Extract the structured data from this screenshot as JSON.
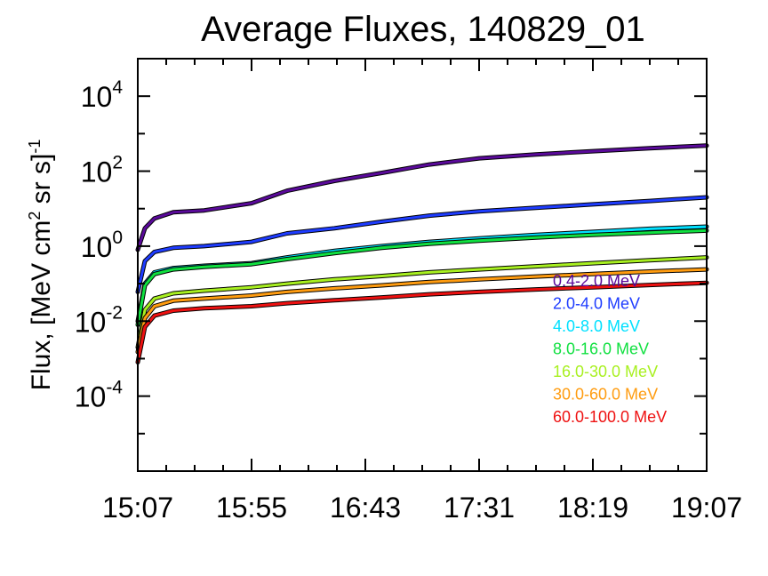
{
  "chart_data": {
    "type": "line",
    "title": "Average Fluxes, 140829_01",
    "ylabel": {
      "base": "Flux, [MeV cm",
      "sup1": "2",
      "mid": " sr s]",
      "sup2": "-1"
    },
    "xlabel": "",
    "x_ticks": [
      "15:07",
      "15:55",
      "16:43",
      "17:31",
      "18:19",
      "19:07"
    ],
    "xlim": [
      "15:07",
      "19:07"
    ],
    "y_scale": "log",
    "ylim": [
      1e-06,
      100000.0
    ],
    "y_ticks": [
      {
        "base": "10",
        "exp": "4",
        "value": 10000
      },
      {
        "base": "10",
        "exp": "2",
        "value": 100
      },
      {
        "base": "10",
        "exp": "0",
        "value": 1
      },
      {
        "base": "10",
        "exp": "-2",
        "value": 0.01
      },
      {
        "base": "10",
        "exp": "-4",
        "value": 0.0001
      }
    ],
    "grid": false,
    "legend_position": "right",
    "x": [
      "15:07",
      "15:10",
      "15:14",
      "15:22",
      "15:35",
      "15:55",
      "16:10",
      "16:30",
      "16:50",
      "17:10",
      "17:31",
      "17:55",
      "18:19",
      "18:43",
      "19:07"
    ],
    "series": [
      {
        "name": "0.4-2.0 MeV",
        "color": "#5a0a9a",
        "values": [
          0.8,
          3,
          5.5,
          8,
          9,
          14,
          30,
          55,
          90,
          150,
          220,
          280,
          340,
          410,
          480
        ]
      },
      {
        "name": "2.0-4.0 MeV",
        "color": "#1e3cff",
        "values": [
          0.06,
          0.4,
          0.7,
          0.9,
          1.0,
          1.3,
          2.2,
          3.0,
          4.5,
          6.5,
          8.5,
          10.5,
          13,
          16,
          20
        ]
      },
      {
        "name": "4.0-8.0 MeV",
        "color": "#00e0ff",
        "values": [
          0.01,
          0.1,
          0.2,
          0.26,
          0.3,
          0.35,
          0.5,
          0.75,
          1.0,
          1.3,
          1.6,
          2.0,
          2.4,
          2.9,
          3.3
        ]
      },
      {
        "name": "8.0-16.0 MeV",
        "color": "#10e040",
        "values": [
          0.008,
          0.09,
          0.18,
          0.24,
          0.28,
          0.33,
          0.45,
          0.65,
          0.9,
          1.15,
          1.4,
          1.7,
          2.0,
          2.3,
          2.6
        ]
      },
      {
        "name": "16.0-30.0 MeV",
        "color": "#a8f020",
        "values": [
          0.002,
          0.02,
          0.04,
          0.055,
          0.065,
          0.08,
          0.1,
          0.13,
          0.16,
          0.2,
          0.24,
          0.29,
          0.35,
          0.42,
          0.5
        ]
      },
      {
        "name": "30.0-60.0 MeV",
        "color": "#ff9c10",
        "values": [
          0.0015,
          0.012,
          0.025,
          0.035,
          0.04,
          0.048,
          0.06,
          0.075,
          0.09,
          0.11,
          0.13,
          0.155,
          0.18,
          0.21,
          0.24
        ]
      },
      {
        "name": "60.0-100.0 MeV",
        "color": "#ee1111",
        "values": [
          0.0008,
          0.007,
          0.014,
          0.019,
          0.022,
          0.025,
          0.03,
          0.036,
          0.043,
          0.052,
          0.06,
          0.07,
          0.08,
          0.092,
          0.105
        ]
      }
    ]
  }
}
